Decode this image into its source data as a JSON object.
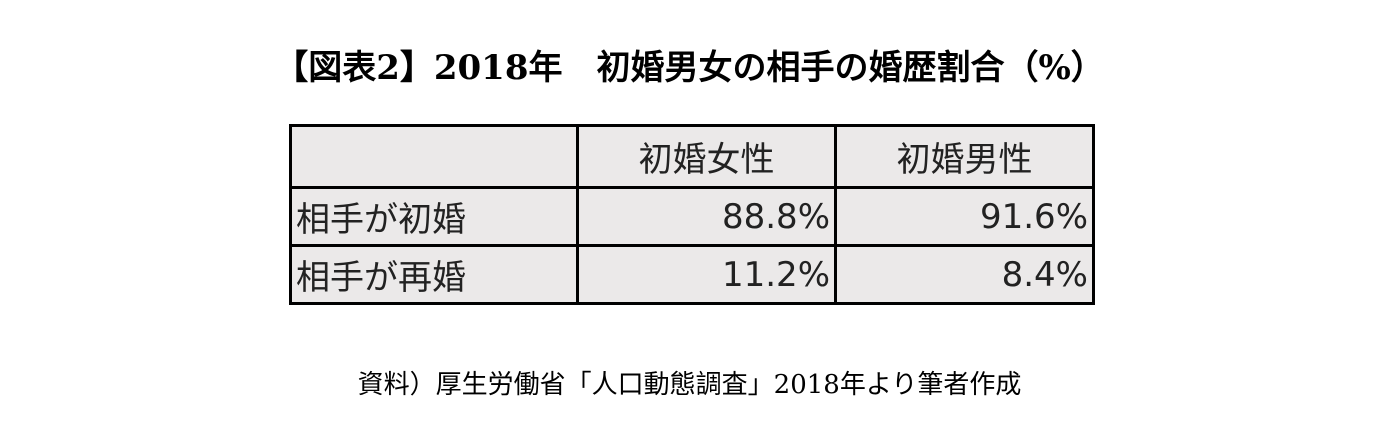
{
  "title": "【図表2】2018年　初婚男女の相手の婚歴割合（%）",
  "table": {
    "header": [
      "",
      "初婚女性",
      "初婚男性"
    ],
    "rows": [
      [
        "相手が初婚",
        "88.8%",
        "91.6%"
      ],
      [
        "相手が再婚",
        "11.2%",
        "8.4%"
      ]
    ]
  },
  "source": "資料）厚生労働省「人口動態調査」2018年より筆者作成"
}
